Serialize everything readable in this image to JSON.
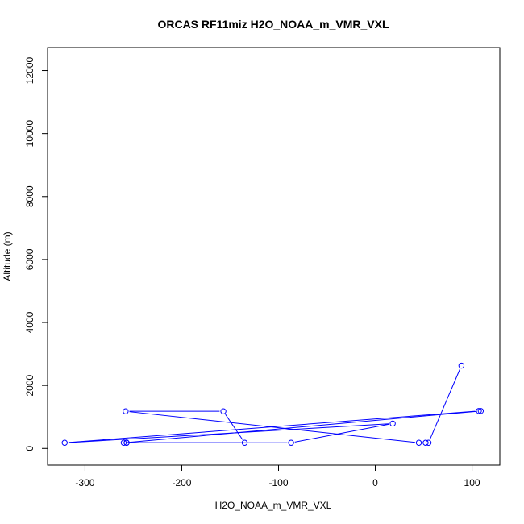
{
  "chart_data": {
    "type": "line",
    "title": "ORCAS RF11miz H2O_NOAA_m_VMR_VXL",
    "xlabel": "H2O_NOAA_m_VMR_VXL",
    "ylabel": "Altitude (m)",
    "xlim": [
      -320,
      110
    ],
    "ylim": [
      0,
      12200
    ],
    "x_ticks": [
      -300,
      -200,
      -100,
      0,
      100
    ],
    "y_ticks": [
      0,
      2000,
      4000,
      6000,
      8000,
      10000,
      12000
    ],
    "grid": false,
    "legend": "none",
    "marker": "open-circle",
    "series": [
      {
        "color": "#0000ff",
        "points": [
          {
            "x": 89,
            "y": 2630
          },
          {
            "x": 55,
            "y": 180
          },
          {
            "x": 52,
            "y": 180
          },
          {
            "x": 45,
            "y": 180
          },
          {
            "x": -258,
            "y": 1180
          },
          {
            "x": -157,
            "y": 1180
          },
          {
            "x": -135,
            "y": 180
          },
          {
            "x": -257,
            "y": 180
          },
          {
            "x": -87,
            "y": 180
          },
          {
            "x": 18,
            "y": 790
          },
          {
            "x": -321,
            "y": 180
          },
          {
            "x": 107,
            "y": 1190
          },
          {
            "x": 109,
            "y": 1190
          },
          {
            "x": -260,
            "y": 180
          },
          {
            "x": -257,
            "y": 180
          }
        ]
      }
    ]
  }
}
